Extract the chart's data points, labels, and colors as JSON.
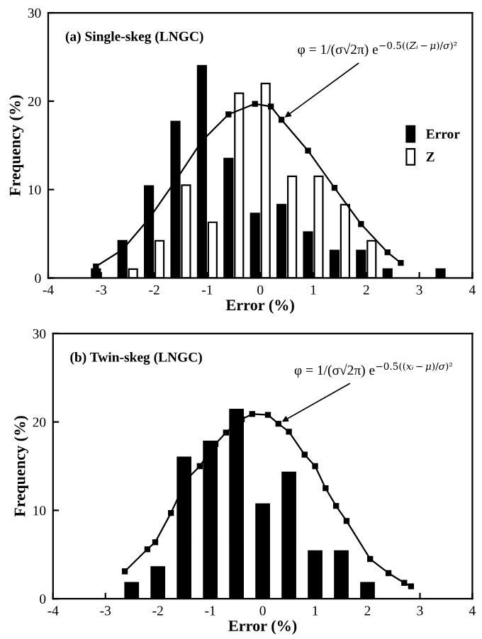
{
  "chart_data": [
    {
      "type": "bar",
      "title": "(a) Single-skeg (LNGC)",
      "xlabel": "Error (%)",
      "ylabel": "Frequency (%)",
      "xlim": [
        -4,
        4
      ],
      "ylim": [
        0,
        30
      ],
      "xticks": [
        -4,
        -3,
        -2,
        -1,
        0,
        1,
        2,
        3,
        4
      ],
      "yticks": [
        0,
        10,
        20,
        30
      ],
      "legend": "center right",
      "grid": false,
      "annotations": [
        {
          "text": "φ = 1/(σ√2π) e$^{−0.5((Zᵢ−μ)/σ)²}$",
          "x": 0.4,
          "y": 17.9
        }
      ],
      "series": [
        {
          "name": "Error",
          "color": "#000000",
          "x": [
            -3.1,
            -2.6,
            -2.1,
            -1.6,
            -1.1,
            -0.6,
            -0.1,
            0.4,
            0.9,
            1.4,
            1.9,
            2.4,
            3.4
          ],
          "values": [
            1,
            4.2,
            10.4,
            17.7,
            24,
            13.5,
            7.3,
            8.3,
            5.2,
            3.1,
            3.1,
            1,
            1
          ]
        },
        {
          "name": "Z",
          "color": "#ffffff",
          "x": [
            -2.4,
            -1.9,
            -1.4,
            -0.9,
            -0.4,
            0.1,
            0.6,
            1.1,
            1.6,
            2.1
          ],
          "values": [
            1,
            4.2,
            10.5,
            6.3,
            20.9,
            22,
            11.5,
            11.5,
            8.3,
            4.2
          ]
        },
        {
          "type": "line",
          "color": "#000000",
          "marker": "square",
          "x": [
            -3.1,
            -2.6,
            -2.1,
            -1.6,
            -1.1,
            -0.6,
            -0.1,
            0.2,
            0.4,
            0.9,
            1.4,
            1.9,
            2.4,
            2.65
          ],
          "values": [
            1.3,
            3.2,
            6.7,
            11,
            15.5,
            18.5,
            19.7,
            19.4,
            17.9,
            14.4,
            10.2,
            6.1,
            2.9,
            1.7
          ]
        }
      ]
    },
    {
      "type": "bar",
      "title": "(b) Twin-skeg (LNGC)",
      "xlabel": "Error (%)",
      "ylabel": "Frequency (%)",
      "xlim": [
        -4,
        4
      ],
      "ylim": [
        0,
        30
      ],
      "xticks": [
        -4,
        -3,
        -2,
        -1,
        0,
        1,
        2,
        3,
        4
      ],
      "yticks": [
        0,
        10,
        20,
        30
      ],
      "grid": false,
      "annotations": [
        {
          "text": "φ = 1/(σ√2π) e$^{−0.5((xᵢ−μ)/σ)²}$",
          "x": 0.3,
          "y": 19.8
        }
      ],
      "series": [
        {
          "color": "#000000",
          "x": [
            -2.5,
            -2,
            -1.5,
            -1,
            -0.5,
            0,
            0.5,
            1,
            1.5,
            2
          ],
          "values": [
            1.8,
            3.6,
            16,
            17.8,
            21.4,
            10.7,
            14.3,
            5.4,
            5.4,
            1.8
          ]
        },
        {
          "type": "line",
          "color": "#000000",
          "marker": "square",
          "x": [
            -2.63,
            -2.2,
            -2.05,
            -1.75,
            -1.45,
            -1.2,
            -0.9,
            -0.7,
            -0.4,
            -0.2,
            0.1,
            0.3,
            0.5,
            0.8,
            1.0,
            1.2,
            1.4,
            1.6,
            2.05,
            2.4,
            2.7,
            2.83
          ],
          "values": [
            3.1,
            5.6,
            6.4,
            9.7,
            13.5,
            15,
            17.5,
            18.8,
            20.3,
            20.9,
            20.8,
            19.8,
            18.9,
            16.3,
            15,
            12.5,
            10.5,
            8.8,
            4.5,
            2.9,
            1.8,
            1.4
          ]
        }
      ]
    }
  ]
}
